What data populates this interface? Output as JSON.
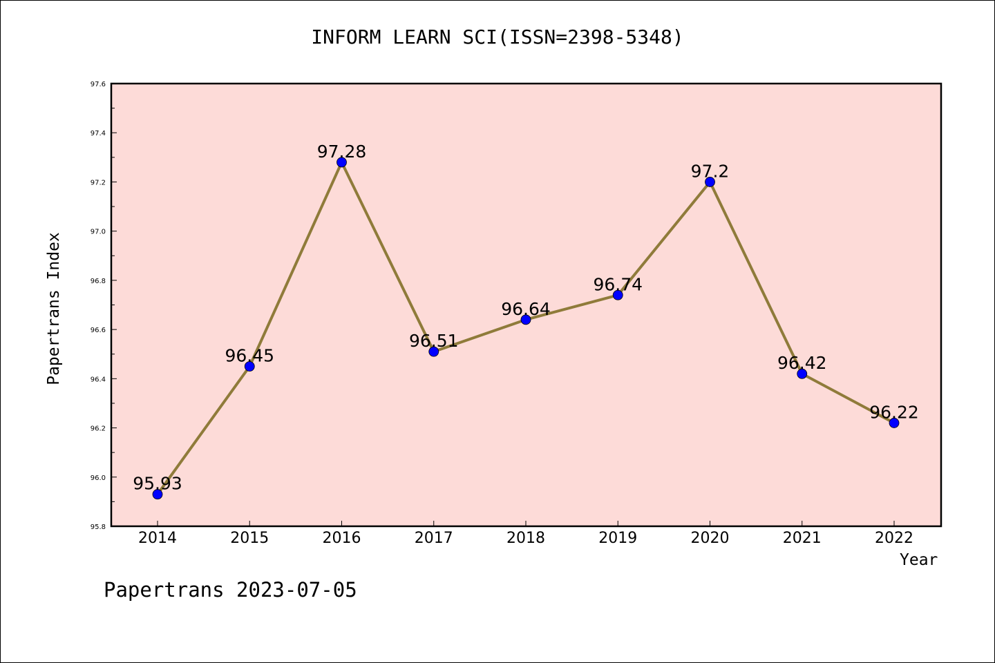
{
  "chart_data": {
    "type": "line",
    "title": "INFORM LEARN SCI(ISSN=2398-5348)",
    "xlabel": "Year",
    "ylabel": "Papertrans Index",
    "categories": [
      "2014",
      "2015",
      "2016",
      "2017",
      "2018",
      "2019",
      "2020",
      "2021",
      "2022"
    ],
    "values": [
      95.93,
      96.45,
      97.28,
      96.51,
      96.64,
      96.74,
      97.2,
      96.42,
      96.22
    ],
    "data_labels": [
      "95.93",
      "96.45",
      "97.28",
      "96.51",
      "96.64",
      "96.74",
      "97.2",
      "96.42",
      "96.22"
    ],
    "ylim": [
      95.8,
      97.6
    ],
    "yticks": [
      "95.8",
      "96.0",
      "96.2",
      "96.4",
      "96.6",
      "96.8",
      "97.0",
      "97.2",
      "97.4",
      "97.6"
    ],
    "grid": false,
    "colors": {
      "plot_background": "#fddbd8",
      "line": "#8f7b3a",
      "marker": "#0000ff"
    }
  },
  "footer": "Papertrans 2023-07-05"
}
